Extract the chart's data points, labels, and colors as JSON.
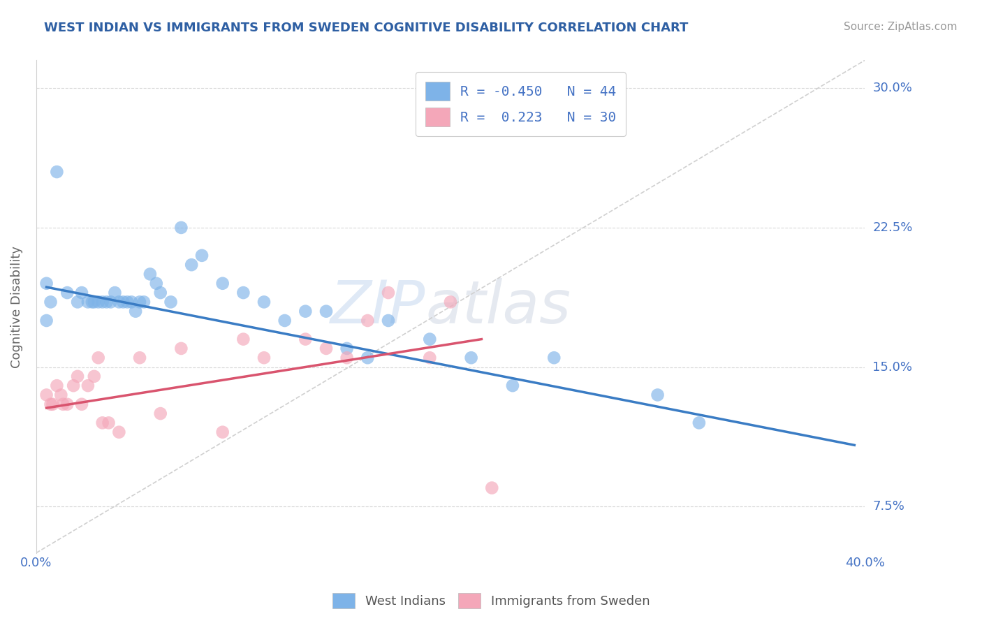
{
  "title": "WEST INDIAN VS IMMIGRANTS FROM SWEDEN COGNITIVE DISABILITY CORRELATION CHART",
  "source": "Source: ZipAtlas.com",
  "ylabel": "Cognitive Disability",
  "xlim": [
    0.0,
    0.4
  ],
  "ylim": [
    0.05,
    0.315
  ],
  "yticks": [
    0.075,
    0.15,
    0.225,
    0.3
  ],
  "ytick_labels": [
    "7.5%",
    "15.0%",
    "22.5%",
    "30.0%"
  ],
  "blue_R": -0.45,
  "blue_N": 44,
  "pink_R": 0.223,
  "pink_N": 30,
  "blue_color": "#7EB3E8",
  "pink_color": "#F4A7B9",
  "blue_line_color": "#3A7CC4",
  "pink_line_color": "#D9546E",
  "blue_line_x": [
    0.005,
    0.395
  ],
  "blue_line_y": [
    0.193,
    0.108
  ],
  "pink_line_x": [
    0.005,
    0.215
  ],
  "pink_line_y": [
    0.128,
    0.165
  ],
  "diagonal_line_x": [
    0.0,
    0.4
  ],
  "diagonal_line_y": [
    0.05,
    0.315
  ],
  "blue_scatter_x": [
    0.005,
    0.01,
    0.015,
    0.02,
    0.022,
    0.025,
    0.027,
    0.028,
    0.03,
    0.032,
    0.034,
    0.036,
    0.038,
    0.04,
    0.042,
    0.044,
    0.046,
    0.048,
    0.05,
    0.052,
    0.055,
    0.058,
    0.06,
    0.065,
    0.07,
    0.075,
    0.08,
    0.09,
    0.1,
    0.11,
    0.12,
    0.13,
    0.14,
    0.15,
    0.16,
    0.17,
    0.19,
    0.21,
    0.23,
    0.25,
    0.3,
    0.32,
    0.005,
    0.007
  ],
  "blue_scatter_y": [
    0.195,
    0.255,
    0.19,
    0.185,
    0.19,
    0.185,
    0.185,
    0.185,
    0.185,
    0.185,
    0.185,
    0.185,
    0.19,
    0.185,
    0.185,
    0.185,
    0.185,
    0.18,
    0.185,
    0.185,
    0.2,
    0.195,
    0.19,
    0.185,
    0.225,
    0.205,
    0.21,
    0.195,
    0.19,
    0.185,
    0.175,
    0.18,
    0.18,
    0.16,
    0.155,
    0.175,
    0.165,
    0.155,
    0.14,
    0.155,
    0.135,
    0.12,
    0.175,
    0.185
  ],
  "pink_scatter_x": [
    0.005,
    0.007,
    0.008,
    0.01,
    0.012,
    0.013,
    0.015,
    0.018,
    0.02,
    0.022,
    0.025,
    0.028,
    0.03,
    0.032,
    0.035,
    0.04,
    0.05,
    0.06,
    0.07,
    0.09,
    0.1,
    0.11,
    0.13,
    0.14,
    0.15,
    0.16,
    0.17,
    0.19,
    0.2,
    0.22
  ],
  "pink_scatter_y": [
    0.135,
    0.13,
    0.13,
    0.14,
    0.135,
    0.13,
    0.13,
    0.14,
    0.145,
    0.13,
    0.14,
    0.145,
    0.155,
    0.12,
    0.12,
    0.115,
    0.155,
    0.125,
    0.16,
    0.115,
    0.165,
    0.155,
    0.165,
    0.16,
    0.155,
    0.175,
    0.19,
    0.155,
    0.185,
    0.085
  ],
  "watermark_zip": "ZIP",
  "watermark_atlas": "atlas"
}
